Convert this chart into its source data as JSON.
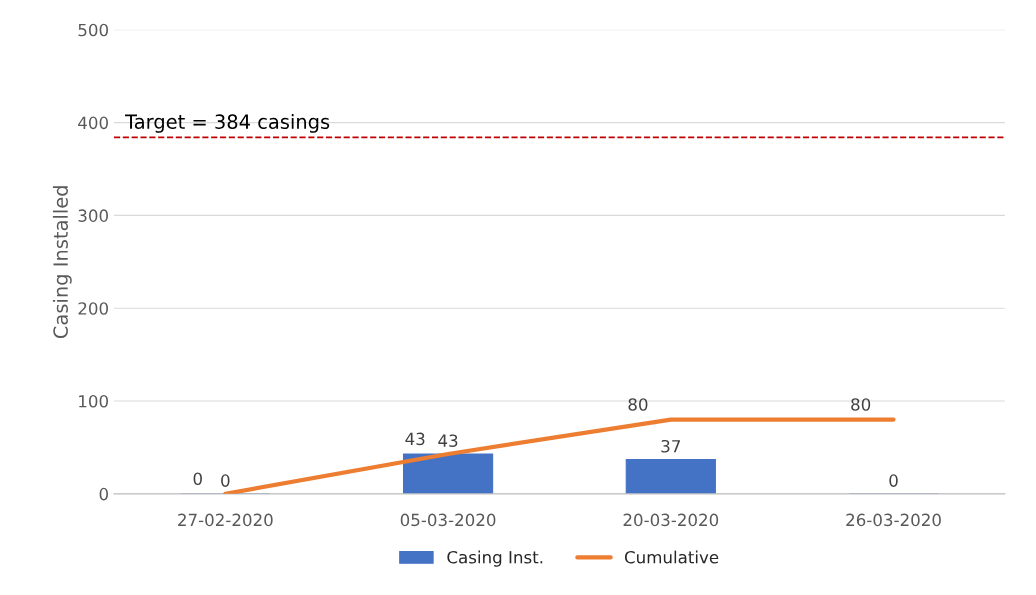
{
  "chart_data": {
    "type": "bar",
    "ylabel": "Casing Installed",
    "categories": [
      "27-02-2020",
      "05-03-2020",
      "20-03-2020",
      "26-03-2020"
    ],
    "series": [
      {
        "name": "Casing Inst.",
        "color": "#4472c4",
        "values": [
          0,
          43,
          37,
          0
        ]
      },
      {
        "name": "Cumulative",
        "type": "line",
        "color": "#ed7d31",
        "values": [
          0,
          43,
          80,
          80
        ]
      }
    ],
    "ylim": [
      0,
      500
    ],
    "yticks": [
      0,
      100,
      200,
      300,
      400,
      500
    ],
    "grid": "y",
    "legend": "bottom",
    "data_labels": true,
    "ref_lines": [
      {
        "axis": "y",
        "value": 384,
        "label": "Target = 384 casings",
        "color": "#c00000",
        "line_style": "dashed"
      }
    ]
  }
}
